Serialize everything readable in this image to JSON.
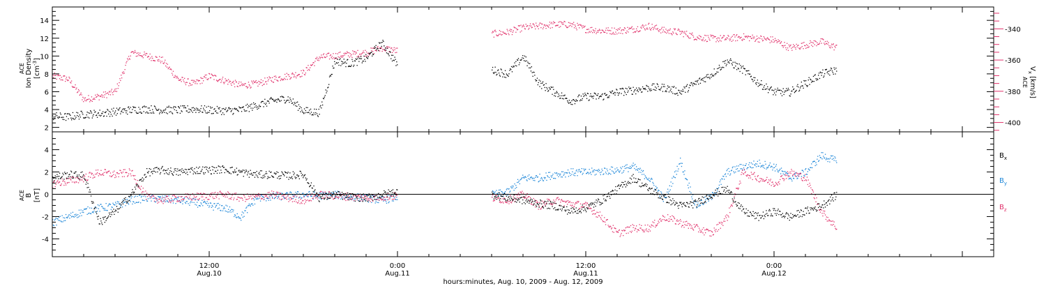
{
  "chart_data": [
    {
      "type": "scatter",
      "panel": "top",
      "xlim": [
        "2009-08-10T02:00",
        "2009-08-12T14:00"
      ],
      "x_ticks_major": [
        {
          "t": "2009-08-10T12:00",
          "time": "12:00",
          "date": "Aug.10"
        },
        {
          "t": "2009-08-11T00:00",
          "time": "0:00",
          "date": "Aug.11"
        },
        {
          "t": "2009-08-11T12:00",
          "time": "12:00",
          "date": "Aug.11"
        },
        {
          "t": "2009-08-12T00:00",
          "time": "0:00",
          "date": "Aug.12"
        }
      ],
      "xlabel": "hours:minutes, Aug. 10, 2009 - Aug. 12, 2009",
      "y_left": {
        "label_lines": [
          "ACE",
          "Ion Density",
          "[cm-3]"
        ],
        "ylim": [
          1.5,
          15.5
        ],
        "ticks": [
          2,
          4,
          6,
          8,
          10,
          12,
          14
        ],
        "color": "#000000"
      },
      "y_right": {
        "label_lines": [
          "ACE",
          "Vx [km/s]"
        ],
        "ylim": [
          -406,
          -326
        ],
        "ticks": [
          -400,
          -380,
          -360,
          -340
        ],
        "color": "#e0306a"
      },
      "gap": [
        "2009-08-11T00:00",
        "2009-08-11T06:00"
      ],
      "series": [
        {
          "axis": "left",
          "color": "#000000",
          "x": [
            "2009-08-10T02:00",
            "2009-08-10T03:00",
            "2009-08-10T04:00",
            "2009-08-10T05:00",
            "2009-08-10T06:00",
            "2009-08-10T07:00",
            "2009-08-10T08:00",
            "2009-08-10T09:00",
            "2009-08-10T10:00",
            "2009-08-10T11:00",
            "2009-08-10T12:00",
            "2009-08-10T13:00",
            "2009-08-10T14:00",
            "2009-08-10T15:00",
            "2009-08-10T16:00",
            "2009-08-10T17:00",
            "2009-08-10T18:00",
            "2009-08-10T19:00",
            "2009-08-10T20:00",
            "2009-08-10T21:00",
            "2009-08-10T22:00",
            "2009-08-10T23:00",
            "2009-08-11T00:00",
            "2009-08-11T06:00",
            "2009-08-11T07:00",
            "2009-08-11T08:00",
            "2009-08-11T09:00",
            "2009-08-11T10:00",
            "2009-08-11T11:00",
            "2009-08-11T12:00",
            "2009-08-11T13:00",
            "2009-08-11T14:00",
            "2009-08-11T15:00",
            "2009-08-11T16:00",
            "2009-08-11T17:00",
            "2009-08-11T18:00",
            "2009-08-11T19:00",
            "2009-08-11T20:00",
            "2009-08-11T21:00",
            "2009-08-11T22:00",
            "2009-08-11T23:00",
            "2009-08-12T00:00",
            "2009-08-12T01:00",
            "2009-08-12T02:00",
            "2009-08-12T03:00",
            "2009-08-12T04:00"
          ],
          "y": [
            3.3,
            3.2,
            3.5,
            3.6,
            3.8,
            4.0,
            4.1,
            4.0,
            4.0,
            4.1,
            4.0,
            3.9,
            4.0,
            4.5,
            5.0,
            5.3,
            3.9,
            3.7,
            9.5,
            9.2,
            9.8,
            11.5,
            9.0,
            8.5,
            8.0,
            10.0,
            7.0,
            6.0,
            5.0,
            5.5,
            5.5,
            6.0,
            6.2,
            6.5,
            6.5,
            6.0,
            7.0,
            8.0,
            9.5,
            8.5,
            7.0,
            6.0,
            6.0,
            7.0,
            8.0,
            8.5
          ]
        },
        {
          "axis": "right",
          "color": "#e0306a",
          "x": [
            "2009-08-10T02:00",
            "2009-08-10T03:00",
            "2009-08-10T04:00",
            "2009-08-10T05:00",
            "2009-08-10T06:00",
            "2009-08-10T07:00",
            "2009-08-10T08:00",
            "2009-08-10T09:00",
            "2009-08-10T10:00",
            "2009-08-10T11:00",
            "2009-08-10T12:00",
            "2009-08-10T13:00",
            "2009-08-10T14:00",
            "2009-08-10T15:00",
            "2009-08-10T16:00",
            "2009-08-10T17:00",
            "2009-08-10T18:00",
            "2009-08-10T19:00",
            "2009-08-10T20:00",
            "2009-08-10T21:00",
            "2009-08-10T22:00",
            "2009-08-10T23:00",
            "2009-08-11T00:00",
            "2009-08-11T06:00",
            "2009-08-11T07:00",
            "2009-08-11T08:00",
            "2009-08-11T09:00",
            "2009-08-11T10:00",
            "2009-08-11T11:00",
            "2009-08-11T12:00",
            "2009-08-11T13:00",
            "2009-08-11T14:00",
            "2009-08-11T15:00",
            "2009-08-11T16:00",
            "2009-08-11T17:00",
            "2009-08-11T18:00",
            "2009-08-11T19:00",
            "2009-08-11T20:00",
            "2009-08-11T21:00",
            "2009-08-11T22:00",
            "2009-08-11T23:00",
            "2009-08-12T00:00",
            "2009-08-12T01:00",
            "2009-08-12T02:00",
            "2009-08-12T03:00",
            "2009-08-12T04:00"
          ],
          "y": [
            -370,
            -372,
            -385,
            -383,
            -380,
            -355,
            -357,
            -360,
            -372,
            -375,
            -370,
            -373,
            -376,
            -375,
            -372,
            -370,
            -368,
            -358,
            -357,
            -356,
            -355,
            -352,
            -354,
            -343,
            -342,
            -339,
            -338,
            -337,
            -337,
            -340,
            -341,
            -341,
            -340,
            -338,
            -341,
            -342,
            -345,
            -346,
            -346,
            -345,
            -346,
            -347,
            -352,
            -350,
            -348,
            -352
          ]
        }
      ]
    },
    {
      "type": "scatter",
      "panel": "bottom",
      "y_left": {
        "label_lines": [
          "ACE",
          "B",
          "[nT]"
        ],
        "ylim": [
          -5.6,
          5.6
        ],
        "ticks": [
          -4,
          -2,
          0,
          2,
          4
        ],
        "color": "#000000"
      },
      "zero_line": true,
      "legend": "right",
      "series": [
        {
          "name": "Bx",
          "color": "#000000",
          "x": [
            "2009-08-10T02:00",
            "2009-08-10T03:00",
            "2009-08-10T04:00",
            "2009-08-10T05:00",
            "2009-08-10T06:00",
            "2009-08-10T07:00",
            "2009-08-10T08:00",
            "2009-08-10T09:00",
            "2009-08-10T10:00",
            "2009-08-10T11:00",
            "2009-08-10T12:00",
            "2009-08-10T13:00",
            "2009-08-10T14:00",
            "2009-08-10T15:00",
            "2009-08-10T16:00",
            "2009-08-10T17:00",
            "2009-08-10T18:00",
            "2009-08-10T19:00",
            "2009-08-10T20:00",
            "2009-08-10T21:00",
            "2009-08-10T22:00",
            "2009-08-10T23:00",
            "2009-08-11T00:00",
            "2009-08-11T06:00",
            "2009-08-11T07:00",
            "2009-08-11T08:00",
            "2009-08-11T09:00",
            "2009-08-11T10:00",
            "2009-08-11T11:00",
            "2009-08-11T12:00",
            "2009-08-11T13:00",
            "2009-08-11T14:00",
            "2009-08-11T15:00",
            "2009-08-11T16:00",
            "2009-08-11T17:00",
            "2009-08-11T18:00",
            "2009-08-11T19:00",
            "2009-08-11T20:00",
            "2009-08-11T21:00",
            "2009-08-11T22:00",
            "2009-08-11T23:00",
            "2009-08-12T00:00",
            "2009-08-12T01:00",
            "2009-08-12T02:00",
            "2009-08-12T03:00",
            "2009-08-12T04:00"
          ],
          "y": [
            1.5,
            1.8,
            1.7,
            -2.5,
            -1.5,
            0.0,
            2.0,
            2.2,
            2.0,
            2.2,
            2.2,
            2.3,
            2.0,
            1.8,
            1.8,
            1.7,
            1.8,
            -0.3,
            0.0,
            -0.2,
            -0.3,
            0.0,
            0.3,
            0.0,
            -0.3,
            -0.5,
            -0.8,
            -1.0,
            -1.5,
            -1.2,
            -0.5,
            0.5,
            1.5,
            0.5,
            -0.3,
            -1.0,
            -0.8,
            0.0,
            0.5,
            -1.5,
            -2.0,
            -1.5,
            -2.0,
            -1.5,
            -1.0,
            0.0
          ]
        },
        {
          "name": "By",
          "color": "#1c86d8",
          "x": [
            "2009-08-10T02:00",
            "2009-08-10T03:00",
            "2009-08-10T04:00",
            "2009-08-10T05:00",
            "2009-08-10T06:00",
            "2009-08-10T07:00",
            "2009-08-10T08:00",
            "2009-08-10T09:00",
            "2009-08-10T10:00",
            "2009-08-10T11:00",
            "2009-08-10T12:00",
            "2009-08-10T13:00",
            "2009-08-10T14:00",
            "2009-08-10T15:00",
            "2009-08-10T16:00",
            "2009-08-10T17:00",
            "2009-08-10T18:00",
            "2009-08-10T19:00",
            "2009-08-10T20:00",
            "2009-08-10T21:00",
            "2009-08-10T22:00",
            "2009-08-10T23:00",
            "2009-08-11T00:00",
            "2009-08-11T06:00",
            "2009-08-11T07:00",
            "2009-08-11T08:00",
            "2009-08-11T09:00",
            "2009-08-11T10:00",
            "2009-08-11T11:00",
            "2009-08-11T12:00",
            "2009-08-11T13:00",
            "2009-08-11T14:00",
            "2009-08-11T15:00",
            "2009-08-11T16:00",
            "2009-08-11T17:00",
            "2009-08-11T18:00",
            "2009-08-11T19:00",
            "2009-08-11T20:00",
            "2009-08-11T21:00",
            "2009-08-11T22:00",
            "2009-08-11T23:00",
            "2009-08-12T00:00",
            "2009-08-12T01:00",
            "2009-08-12T02:00",
            "2009-08-12T03:00",
            "2009-08-12T04:00"
          ],
          "y": [
            -2.5,
            -2.0,
            -1.5,
            -1.2,
            -1.0,
            -0.5,
            -0.3,
            -0.4,
            -0.5,
            -0.7,
            -1.0,
            -1.2,
            -2.0,
            -0.3,
            -0.2,
            -0.1,
            0.0,
            -0.1,
            0.0,
            -0.2,
            -0.3,
            -0.5,
            -0.2,
            0.0,
            0.2,
            1.5,
            1.5,
            1.8,
            2.0,
            2.0,
            2.1,
            2.2,
            2.5,
            1.5,
            -0.5,
            3.0,
            -1.0,
            -0.2,
            2.0,
            2.5,
            2.8,
            2.5,
            1.5,
            2.0,
            3.5,
            3.0
          ]
        },
        {
          "name": "Bz",
          "color": "#e0306a",
          "x": [
            "2009-08-10T02:00",
            "2009-08-10T03:00",
            "2009-08-10T04:00",
            "2009-08-10T05:00",
            "2009-08-10T06:00",
            "2009-08-10T07:00",
            "2009-08-10T08:00",
            "2009-08-10T09:00",
            "2009-08-10T10:00",
            "2009-08-10T11:00",
            "2009-08-10T12:00",
            "2009-08-10T13:00",
            "2009-08-10T14:00",
            "2009-08-10T15:00",
            "2009-08-10T16:00",
            "2009-08-10T17:00",
            "2009-08-10T18:00",
            "2009-08-10T19:00",
            "2009-08-10T20:00",
            "2009-08-10T21:00",
            "2009-08-10T22:00",
            "2009-08-10T23:00",
            "2009-08-11T00:00",
            "2009-08-11T06:00",
            "2009-08-11T07:00",
            "2009-08-11T08:00",
            "2009-08-11T09:00",
            "2009-08-11T10:00",
            "2009-08-11T11:00",
            "2009-08-11T12:00",
            "2009-08-11T13:00",
            "2009-08-11T14:00",
            "2009-08-11T15:00",
            "2009-08-11T16:00",
            "2009-08-11T17:00",
            "2009-08-11T18:00",
            "2009-08-11T19:00",
            "2009-08-11T20:00",
            "2009-08-11T21:00",
            "2009-08-11T22:00",
            "2009-08-11T23:00",
            "2009-08-12T00:00",
            "2009-08-12T01:00",
            "2009-08-12T02:00",
            "2009-08-12T03:00",
            "2009-08-12T04:00"
          ],
          "y": [
            1.0,
            1.2,
            1.5,
            2.0,
            1.8,
            2.0,
            -0.2,
            -0.5,
            -0.3,
            -0.2,
            -0.1,
            0.0,
            -0.3,
            -0.2,
            0.0,
            -0.3,
            -0.5,
            0.0,
            -0.1,
            -0.2,
            -0.3,
            -0.2,
            -0.1,
            -0.3,
            -0.5,
            0.0,
            -1.0,
            -0.5,
            -0.8,
            -1.0,
            -2.0,
            -3.5,
            -3.0,
            -3.0,
            -2.0,
            -2.5,
            -3.0,
            -3.5,
            -2.0,
            2.0,
            1.5,
            1.0,
            2.0,
            1.5,
            -1.5,
            -3.0
          ]
        }
      ]
    }
  ],
  "legend": {
    "bx_main": "B",
    "bx_sub": "x",
    "by_main": "B",
    "by_sub": "y",
    "bz_main": "B",
    "bz_sub": "z"
  },
  "axes_text": {
    "top_left_l1": "ACE",
    "top_left_l2": "Ion Density",
    "top_left_l3_main": "[cm",
    "top_left_l3_sup": "-3",
    "top_left_l3_end": "]",
    "top_right_l1": "ACE",
    "top_right_l2_main": "V",
    "top_right_l2_sub": "x",
    "top_right_l2_end": " [km/s]",
    "bottom_left_l1": "ACE",
    "bottom_left_l2": "B",
    "bottom_left_l3": "[nT]",
    "xlabel": "hours:minutes, Aug. 10, 2009 - Aug. 12, 2009"
  },
  "colors": {
    "black": "#000000",
    "pink": "#e0306a",
    "blue": "#1c86d8"
  }
}
